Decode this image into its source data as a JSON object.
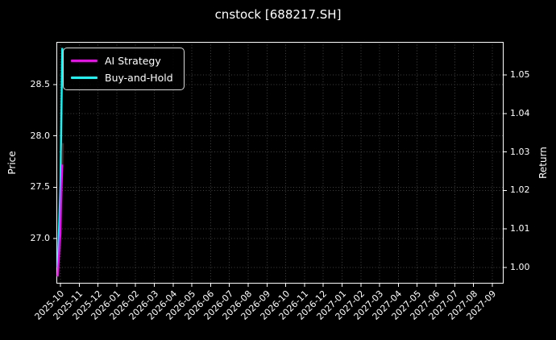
{
  "window": {
    "kind": "chart-figure",
    "background_color": "#000000",
    "text_color": "#ffffff",
    "spine_color": "#ffffff"
  },
  "chart_data": {
    "type": "line",
    "title": "cnstock [688217.SH]",
    "grid": {
      "style": "dotted",
      "color": "#424242",
      "on": true
    },
    "x_axis": {
      "tick_rotation_deg": 45,
      "ticks": [
        "2025-10",
        "2025-11",
        "2025-12",
        "2026-01",
        "2026-02",
        "2026-03",
        "2026-04",
        "2026-05",
        "2026-06",
        "2026-07",
        "2026-08",
        "2026-09",
        "2026-10",
        "2026-11",
        "2026-12",
        "2027-01",
        "2027-02",
        "2027-03",
        "2027-04",
        "2027-05",
        "2027-06",
        "2027-07",
        "2027-08",
        "2027-09"
      ]
    },
    "y_left": {
      "label": "Price",
      "ticks": [
        "27.0",
        "27.5",
        "28.0",
        "28.5"
      ],
      "range": [
        26.56,
        28.92
      ]
    },
    "y_right": {
      "label": "Return",
      "ticks": [
        "1.00",
        "1.01",
        "1.02",
        "1.03",
        "1.04",
        "1.05"
      ],
      "range": [
        0.9955,
        1.0585
      ]
    },
    "legend": {
      "position": "upper-left",
      "entries": [
        {
          "label": "AI Strategy",
          "color": "#ff00ff"
        },
        {
          "label": "Buy-and-Hold",
          "color": "#00ffff"
        }
      ]
    },
    "series": [
      {
        "name": "AI Strategy",
        "axis": "price",
        "color": "#ff00ff",
        "x": [
          "2025-09-27",
          "2025-09-29",
          "2025-10-01",
          "2025-10-02",
          "2025-10-04"
        ],
        "values": [
          26.63,
          26.82,
          27.05,
          27.35,
          27.72
        ]
      },
      {
        "name": "Buy-and-Hold",
        "axis": "return",
        "color": "#00ffff",
        "x": [
          "2025-09-27",
          "2025-10-01",
          "2025-10-03",
          "2025-10-04"
        ],
        "values": [
          1.0,
          1.021,
          1.045,
          1.057
        ]
      }
    ],
    "extra_segment": {
      "comment": "small dark red sliver visible beside the spike",
      "color": "#6e1b1b",
      "x": [
        "2025-10-03",
        "2025-10-03"
      ],
      "price": [
        27.93,
        27.69
      ]
    },
    "layout_note": "all data is compressed into a narrow vertical spike at the far left of the plot"
  }
}
